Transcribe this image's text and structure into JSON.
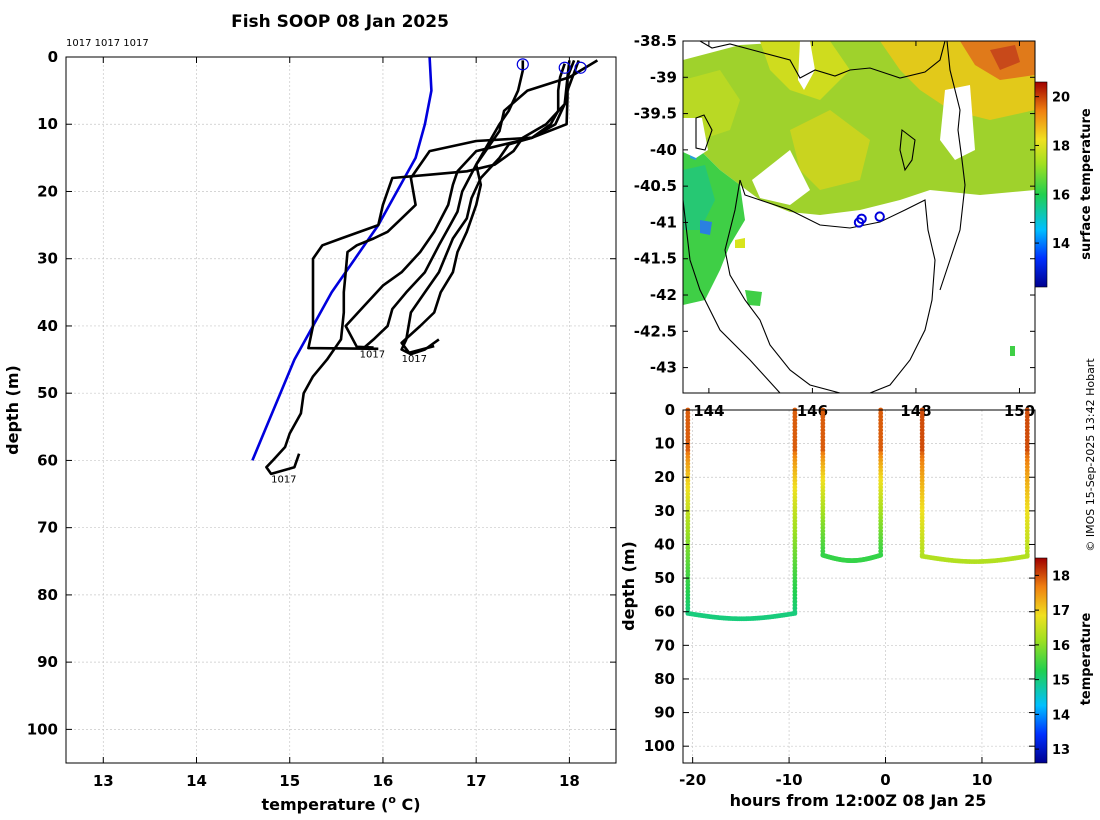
{
  "chart_data": [
    {
      "type": "line",
      "name": "profile-panel",
      "title": "Fish SOOP 08 Jan 2025",
      "xlabel": "temperature (° C)",
      "xlabel_main": "temperature (",
      "xlabel_degree": "o",
      "xlabel_tail": " C)",
      "ylabel": "depth (m)",
      "xlim": [
        12.6,
        18.5
      ],
      "ylim": [
        105,
        0
      ],
      "xticks": [
        13,
        14,
        15,
        16,
        17,
        18
      ],
      "yticks": [
        0,
        10,
        20,
        30,
        40,
        50,
        60,
        70,
        80,
        90,
        100
      ],
      "grid": true,
      "top_labels": "1017 1017 1017",
      "bottom_labels": [
        {
          "text": "1017",
          "t": 15.75,
          "d": 43.8
        },
        {
          "text": "1017",
          "t": 16.2,
          "d": 44.5
        },
        {
          "text": "1017",
          "t": 14.8,
          "d": 62.4
        }
      ],
      "surface_markers": [
        {
          "t": 17.5,
          "d": 0.5
        },
        {
          "t": 17.95,
          "d": 1.0
        },
        {
          "t": 18.12,
          "d": 1.0
        }
      ],
      "series": [
        {
          "name": "climatology",
          "color": "#0000dd",
          "points": [
            [
              16.5,
              0
            ],
            [
              16.52,
              5
            ],
            [
              16.45,
              10
            ],
            [
              16.35,
              15
            ],
            [
              16.15,
              20
            ],
            [
              15.95,
              25
            ],
            [
              15.7,
              30
            ],
            [
              15.45,
              35
            ],
            [
              15.25,
              40
            ],
            [
              15.05,
              45
            ],
            [
              14.9,
              50
            ],
            [
              14.75,
              55
            ],
            [
              14.6,
              60
            ]
          ]
        },
        {
          "name": "profile-1",
          "color": "#000000",
          "points": [
            [
              18.0,
              0.5
            ],
            [
              17.98,
              3
            ],
            [
              17.98,
              6
            ],
            [
              17.97,
              10
            ],
            [
              17.6,
              12
            ],
            [
              17.0,
              12.5
            ],
            [
              16.5,
              14
            ],
            [
              16.3,
              18
            ],
            [
              16.35,
              22
            ],
            [
              16.2,
              24
            ],
            [
              16.05,
              26
            ],
            [
              15.9,
              27
            ],
            [
              15.72,
              28
            ],
            [
              15.62,
              29
            ],
            [
              15.6,
              32
            ],
            [
              15.58,
              35
            ],
            [
              15.58,
              38
            ],
            [
              15.55,
              42
            ],
            [
              15.4,
              45
            ],
            [
              15.25,
              47.5
            ],
            [
              15.15,
              50
            ],
            [
              15.12,
              53
            ],
            [
              15.0,
              56
            ],
            [
              14.95,
              58
            ],
            [
              14.82,
              60
            ],
            [
              14.75,
              61
            ],
            [
              14.8,
              62
            ],
            [
              15.05,
              61
            ],
            [
              15.1,
              59
            ]
          ]
        },
        {
          "name": "profile-2",
          "color": "#000000",
          "points": [
            [
              18.1,
              0.5
            ],
            [
              17.98,
              5
            ],
            [
              17.95,
              7
            ],
            [
              17.85,
              10
            ],
            [
              17.6,
              12
            ],
            [
              17.0,
              14
            ],
            [
              16.8,
              17
            ],
            [
              16.75,
              19
            ],
            [
              16.7,
              22
            ],
            [
              16.55,
              26
            ],
            [
              16.4,
              29
            ],
            [
              16.2,
              32
            ],
            [
              16.0,
              34
            ],
            [
              15.8,
              37
            ],
            [
              15.6,
              40
            ],
            [
              15.72,
              43.1
            ],
            [
              15.9,
              43.2
            ]
          ]
        },
        {
          "name": "profile-3",
          "color": "#000000",
          "points": [
            [
              18.3,
              0.5
            ],
            [
              18.0,
              3
            ],
            [
              17.55,
              5
            ],
            [
              17.3,
              8
            ],
            [
              17.25,
              11
            ],
            [
              17.15,
              13
            ],
            [
              17.0,
              16
            ],
            [
              16.85,
              20
            ],
            [
              16.8,
              23
            ],
            [
              16.72,
              25
            ],
            [
              16.6,
              28
            ],
            [
              16.45,
              32
            ],
            [
              16.25,
              35
            ],
            [
              16.1,
              37.5
            ],
            [
              16.05,
              40
            ],
            [
              15.9,
              42
            ],
            [
              15.8,
              43.2
            ]
          ]
        },
        {
          "name": "profile-4",
          "color": "#000000",
          "points": [
            [
              17.95,
              1
            ],
            [
              17.9,
              3
            ],
            [
              17.88,
              5
            ],
            [
              17.88,
              8
            ],
            [
              17.8,
              10
            ],
            [
              17.6,
              12
            ],
            [
              17.35,
              13
            ],
            [
              17.25,
              15
            ],
            [
              17.05,
              18
            ],
            [
              16.95,
              21
            ],
            [
              16.9,
              24
            ],
            [
              16.75,
              27
            ],
            [
              16.6,
              32
            ],
            [
              16.45,
              35
            ],
            [
              16.3,
              38
            ],
            [
              16.25,
              42
            ],
            [
              16.2,
              43.5
            ],
            [
              16.3,
              44.2
            ],
            [
              16.45,
              43.5
            ],
            [
              16.6,
              42
            ]
          ]
        },
        {
          "name": "profile-5",
          "color": "#000000",
          "points": [
            [
              17.5,
              0.5
            ],
            [
              17.5,
              2
            ],
            [
              17.45,
              5
            ],
            [
              17.35,
              8
            ],
            [
              17.25,
              10
            ],
            [
              17.0,
              16
            ],
            [
              17.05,
              19
            ],
            [
              17.0,
              22
            ],
            [
              16.9,
              26
            ],
            [
              16.8,
              29
            ],
            [
              16.75,
              32
            ],
            [
              16.62,
              35
            ],
            [
              16.55,
              38
            ],
            [
              16.4,
              40
            ],
            [
              16.2,
              42.5
            ],
            [
              16.28,
              44
            ],
            [
              16.55,
              43
            ]
          ]
        },
        {
          "name": "profile-6",
          "color": "#000000",
          "points": [
            [
              18.05,
              0.5
            ],
            [
              17.98,
              3
            ],
            [
              17.95,
              7
            ],
            [
              17.75,
              10
            ],
            [
              17.5,
              12
            ],
            [
              17.4,
              14
            ],
            [
              17.2,
              16
            ],
            [
              16.9,
              17
            ],
            [
              16.5,
              17.5
            ],
            [
              16.1,
              18
            ],
            [
              16.0,
              22
            ],
            [
              15.95,
              25
            ],
            [
              15.55,
              27
            ],
            [
              15.35,
              28
            ],
            [
              15.25,
              30
            ],
            [
              15.25,
              35
            ],
            [
              15.25,
              40
            ],
            [
              15.2,
              43.3
            ],
            [
              15.95,
              43.4
            ]
          ]
        }
      ]
    },
    {
      "type": "heatmap",
      "name": "sst-map",
      "colorbar_label": "surface temperature",
      "colorbar_ticks": [
        14,
        16,
        18,
        20
      ],
      "colorbar_range": [
        12.2,
        20.6
      ],
      "lat_ticks": [
        "-38.5",
        "-39",
        "-39.5",
        "-40",
        "-40.5",
        "-41",
        "-41.5",
        "-42",
        "-42.5",
        "-43"
      ],
      "lon_ticks": [
        "144",
        "146",
        "148",
        "150"
      ],
      "lon_range": [
        143.5,
        150.3
      ],
      "lat_range": [
        -43.35,
        -38.5
      ],
      "station_markers": [
        {
          "lon": 146.9,
          "lat": -41.0
        },
        {
          "lon": 146.95,
          "lat": -40.95
        },
        {
          "lon": 147.3,
          "lat": -40.92
        }
      ]
    },
    {
      "type": "scatter",
      "name": "section-panel",
      "xlabel": "hours from 12:00Z 08 Jan 25",
      "ylabel": "depth (m)",
      "xlim": [
        -21,
        15.5
      ],
      "ylim": [
        105,
        0
      ],
      "xticks": [
        -20,
        -10,
        0,
        10
      ],
      "yticks": [
        0,
        10,
        20,
        30,
        40,
        50,
        60,
        70,
        80,
        90,
        100
      ],
      "colorbar_label": "temperature",
      "colorbar_ticks": [
        13,
        14,
        15,
        16,
        17,
        18
      ],
      "colorbar_range": [
        12.6,
        18.5
      ],
      "casts": [
        {
          "start": -20.5,
          "end": -9.4,
          "bottom": 60.5,
          "surface_temp": 17.9,
          "bottom_temp": 15.0
        },
        {
          "start": -6.5,
          "end": -0.5,
          "bottom": 43.2,
          "surface_temp": 17.9,
          "bottom_temp": 15.4
        },
        {
          "start": 3.8,
          "end": 14.7,
          "bottom": 43.5,
          "surface_temp": 18.0,
          "bottom_temp": 16.3
        }
      ]
    }
  ],
  "credit": "© IMOS 15-Sep-2025 13:42 Hobart"
}
